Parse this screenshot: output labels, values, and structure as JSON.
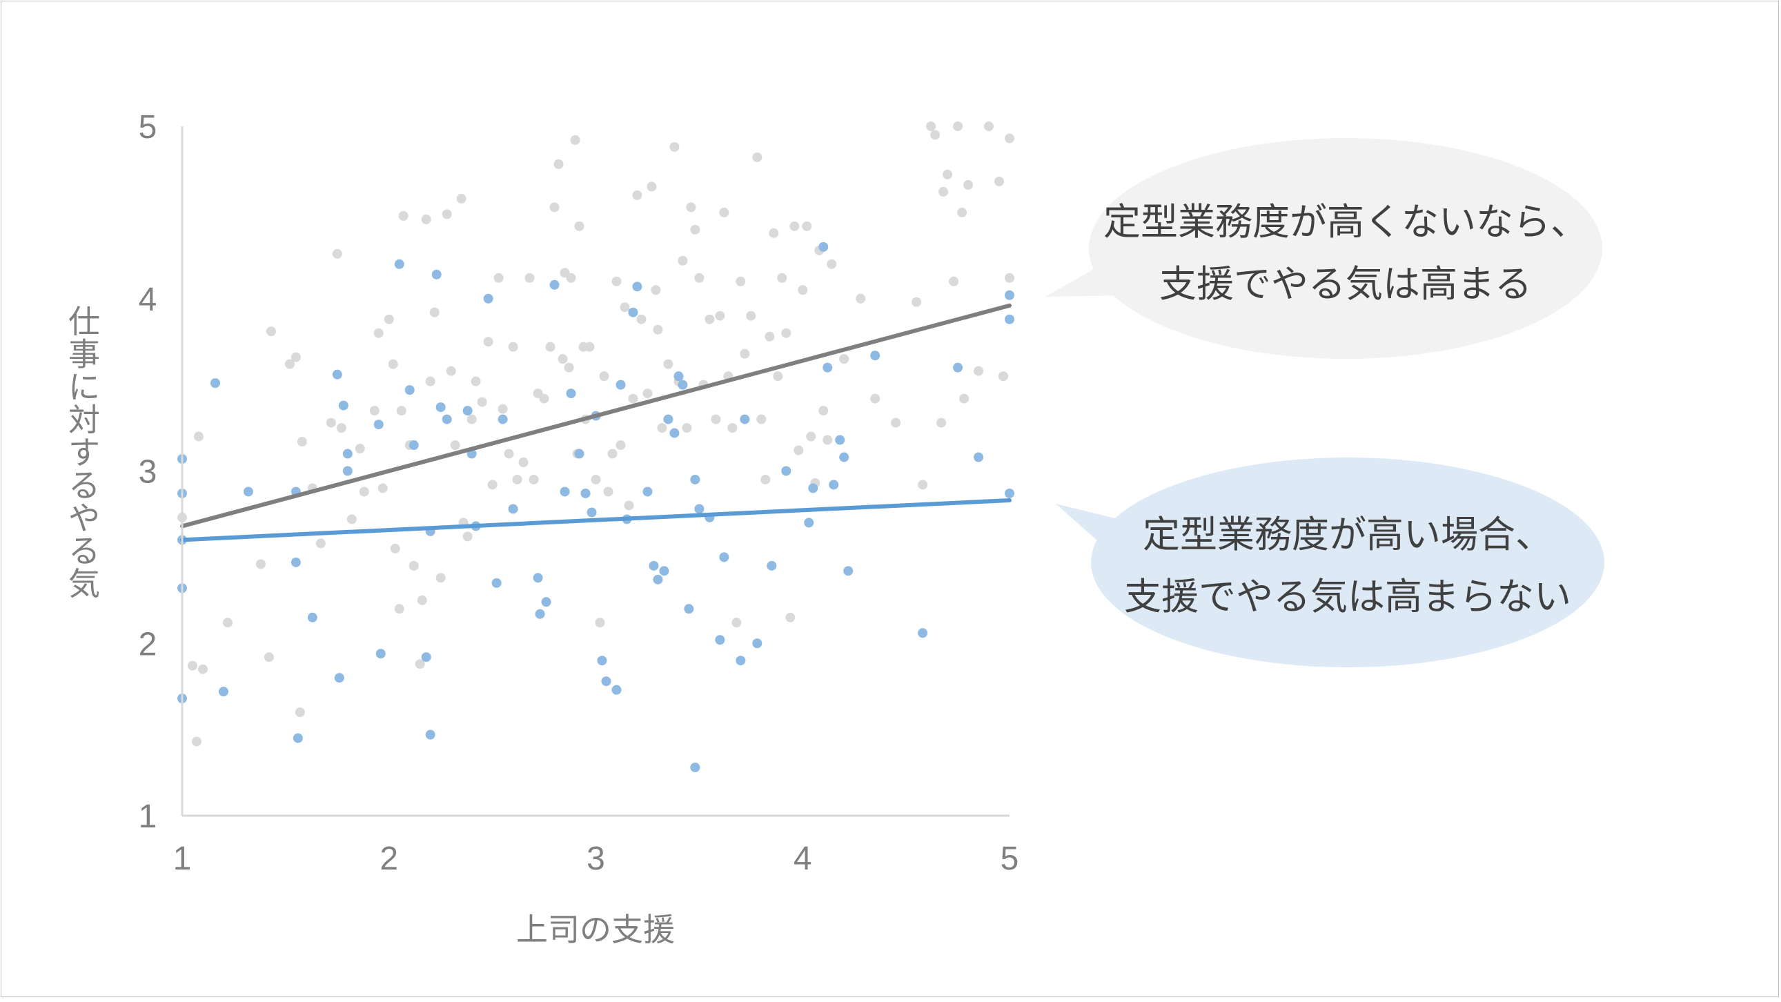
{
  "chart_data": {
    "type": "scatter",
    "xlabel": "上司の支援",
    "ylabel": "仕事に対するやる気",
    "xlim": [
      1,
      5
    ],
    "ylim": [
      1,
      5
    ],
    "x_ticks": [
      "1",
      "2",
      "3",
      "4",
      "5"
    ],
    "y_ticks": [
      "1",
      "2",
      "3",
      "4",
      "5"
    ],
    "grid": false,
    "colors": {
      "low_routine": "#7f7f7f",
      "low_routine_points": "#d9d9d9",
      "high_routine": "#5b9bd5",
      "high_routine_points": "#8db9e2",
      "axis": "#d9d9d9"
    },
    "series": [
      {
        "key": "low_routine",
        "trend": {
          "x": [
            1,
            5
          ],
          "y": [
            2.68,
            3.96
          ]
        },
        "points": [
          [
            1.0,
            2.73
          ],
          [
            1.05,
            1.87
          ],
          [
            1.07,
            1.43
          ],
          [
            1.08,
            3.2
          ],
          [
            1.1,
            1.85
          ],
          [
            1.22,
            2.12
          ],
          [
            1.38,
            2.46
          ],
          [
            1.42,
            1.92
          ],
          [
            1.43,
            3.81
          ],
          [
            1.52,
            3.62
          ],
          [
            1.55,
            3.66
          ],
          [
            1.57,
            1.6
          ],
          [
            1.58,
            3.17
          ],
          [
            1.63,
            2.9
          ],
          [
            1.67,
            2.58
          ],
          [
            1.72,
            3.28
          ],
          [
            1.75,
            4.26
          ],
          [
            1.77,
            3.25
          ],
          [
            1.82,
            2.72
          ],
          [
            1.86,
            3.13
          ],
          [
            1.88,
            2.88
          ],
          [
            1.93,
            3.35
          ],
          [
            1.95,
            3.8
          ],
          [
            1.97,
            2.9
          ],
          [
            2.0,
            3.88
          ],
          [
            2.02,
            3.62
          ],
          [
            2.03,
            2.55
          ],
          [
            2.05,
            2.2
          ],
          [
            2.06,
            3.35
          ],
          [
            2.07,
            4.48
          ],
          [
            2.1,
            3.15
          ],
          [
            2.12,
            2.45
          ],
          [
            2.15,
            1.88
          ],
          [
            2.16,
            2.25
          ],
          [
            2.18,
            4.46
          ],
          [
            2.2,
            3.52
          ],
          [
            2.22,
            3.92
          ],
          [
            2.25,
            2.38
          ],
          [
            2.28,
            4.49
          ],
          [
            2.3,
            3.58
          ],
          [
            2.32,
            3.15
          ],
          [
            2.35,
            4.58
          ],
          [
            2.36,
            2.7
          ],
          [
            2.38,
            2.62
          ],
          [
            2.4,
            3.3
          ],
          [
            2.42,
            3.52
          ],
          [
            2.45,
            3.4
          ],
          [
            2.48,
            3.75
          ],
          [
            2.5,
            2.92
          ],
          [
            2.53,
            4.12
          ],
          [
            2.55,
            3.36
          ],
          [
            2.58,
            3.1
          ],
          [
            2.6,
            3.72
          ],
          [
            2.62,
            2.95
          ],
          [
            2.65,
            3.05
          ],
          [
            2.68,
            4.12
          ],
          [
            2.7,
            2.95
          ],
          [
            2.72,
            3.45
          ],
          [
            2.75,
            3.42
          ],
          [
            2.78,
            3.72
          ],
          [
            2.8,
            4.53
          ],
          [
            2.82,
            4.78
          ],
          [
            2.84,
            3.65
          ],
          [
            2.85,
            4.15
          ],
          [
            2.87,
            3.6
          ],
          [
            2.88,
            4.12
          ],
          [
            2.9,
            4.92
          ],
          [
            2.91,
            3.1
          ],
          [
            2.92,
            4.42
          ],
          [
            2.94,
            3.72
          ],
          [
            2.95,
            3.3
          ],
          [
            2.97,
            3.72
          ],
          [
            3.0,
            2.95
          ],
          [
            3.02,
            2.12
          ],
          [
            3.04,
            3.55
          ],
          [
            3.06,
            2.88
          ],
          [
            3.08,
            3.1
          ],
          [
            3.1,
            4.1
          ],
          [
            3.12,
            3.15
          ],
          [
            3.14,
            3.95
          ],
          [
            3.16,
            2.8
          ],
          [
            3.18,
            3.42
          ],
          [
            3.2,
            4.6
          ],
          [
            3.22,
            3.88
          ],
          [
            3.25,
            3.45
          ],
          [
            3.27,
            4.65
          ],
          [
            3.29,
            4.05
          ],
          [
            3.3,
            3.82
          ],
          [
            3.32,
            3.25
          ],
          [
            3.35,
            3.62
          ],
          [
            3.38,
            4.88
          ],
          [
            3.4,
            3.52
          ],
          [
            3.42,
            4.22
          ],
          [
            3.44,
            3.25
          ],
          [
            3.46,
            4.53
          ],
          [
            3.48,
            4.4
          ],
          [
            3.5,
            4.12
          ],
          [
            3.52,
            3.5
          ],
          [
            3.55,
            3.88
          ],
          [
            3.58,
            3.3
          ],
          [
            3.6,
            3.9
          ],
          [
            3.62,
            4.5
          ],
          [
            3.64,
            3.55
          ],
          [
            3.66,
            3.25
          ],
          [
            3.68,
            2.12
          ],
          [
            3.7,
            4.1
          ],
          [
            3.72,
            3.68
          ],
          [
            3.75,
            3.9
          ],
          [
            3.78,
            4.82
          ],
          [
            3.8,
            3.3
          ],
          [
            3.82,
            2.95
          ],
          [
            3.84,
            3.78
          ],
          [
            3.86,
            4.38
          ],
          [
            3.88,
            3.55
          ],
          [
            3.9,
            4.12
          ],
          [
            3.92,
            3.8
          ],
          [
            3.94,
            2.15
          ],
          [
            3.96,
            4.42
          ],
          [
            3.98,
            3.12
          ],
          [
            4.0,
            4.05
          ],
          [
            4.02,
            4.42
          ],
          [
            4.04,
            3.2
          ],
          [
            4.06,
            2.93
          ],
          [
            4.08,
            4.28
          ],
          [
            4.1,
            3.35
          ],
          [
            4.12,
            3.18
          ],
          [
            4.14,
            4.2
          ],
          [
            4.2,
            3.65
          ],
          [
            4.28,
            4.0
          ],
          [
            4.35,
            3.42
          ],
          [
            4.45,
            3.28
          ],
          [
            4.55,
            3.98
          ],
          [
            4.58,
            2.92
          ],
          [
            4.62,
            5.0
          ],
          [
            4.64,
            4.95
          ],
          [
            4.67,
            3.28
          ],
          [
            4.68,
            4.62
          ],
          [
            4.7,
            4.72
          ],
          [
            4.73,
            4.1
          ],
          [
            4.75,
            5.0
          ],
          [
            4.77,
            4.5
          ],
          [
            4.78,
            3.42
          ],
          [
            4.8,
            4.66
          ],
          [
            4.85,
            3.58
          ],
          [
            4.9,
            5.0
          ],
          [
            4.95,
            4.68
          ],
          [
            4.97,
            3.55
          ],
          [
            5.0,
            4.93
          ],
          [
            5.0,
            4.12
          ]
        ]
      },
      {
        "key": "high_routine",
        "trend": {
          "x": [
            1,
            5
          ],
          "y": [
            2.6,
            2.83
          ]
        },
        "points": [
          [
            1.0,
            3.07
          ],
          [
            1.0,
            2.87
          ],
          [
            1.0,
            2.6
          ],
          [
            1.0,
            2.32
          ],
          [
            1.0,
            1.68
          ],
          [
            1.16,
            3.51
          ],
          [
            1.2,
            1.72
          ],
          [
            1.32,
            2.88
          ],
          [
            1.55,
            2.88
          ],
          [
            1.55,
            2.47
          ],
          [
            1.56,
            1.45
          ],
          [
            1.63,
            2.15
          ],
          [
            1.75,
            3.56
          ],
          [
            1.76,
            1.8
          ],
          [
            1.78,
            3.38
          ],
          [
            1.8,
            3.1
          ],
          [
            1.8,
            3.0
          ],
          [
            1.95,
            3.27
          ],
          [
            1.96,
            1.94
          ],
          [
            2.05,
            4.2
          ],
          [
            2.1,
            3.47
          ],
          [
            2.12,
            3.15
          ],
          [
            2.18,
            1.92
          ],
          [
            2.2,
            1.47
          ],
          [
            2.2,
            2.65
          ],
          [
            2.23,
            4.14
          ],
          [
            2.25,
            3.37
          ],
          [
            2.28,
            3.3
          ],
          [
            2.38,
            3.35
          ],
          [
            2.4,
            3.1
          ],
          [
            2.42,
            2.68
          ],
          [
            2.48,
            4.0
          ],
          [
            2.52,
            2.35
          ],
          [
            2.55,
            3.3
          ],
          [
            2.6,
            2.78
          ],
          [
            2.72,
            2.38
          ],
          [
            2.73,
            2.17
          ],
          [
            2.76,
            2.24
          ],
          [
            2.8,
            4.08
          ],
          [
            2.85,
            2.88
          ],
          [
            2.88,
            3.45
          ],
          [
            2.92,
            3.1
          ],
          [
            2.95,
            2.87
          ],
          [
            2.98,
            2.76
          ],
          [
            3.0,
            3.32
          ],
          [
            3.03,
            1.9
          ],
          [
            3.05,
            1.78
          ],
          [
            3.1,
            1.73
          ],
          [
            3.12,
            3.5
          ],
          [
            3.15,
            2.72
          ],
          [
            3.18,
            3.92
          ],
          [
            3.2,
            4.07
          ],
          [
            3.25,
            2.88
          ],
          [
            3.28,
            2.45
          ],
          [
            3.3,
            2.37
          ],
          [
            3.33,
            2.42
          ],
          [
            3.35,
            3.3
          ],
          [
            3.38,
            3.22
          ],
          [
            3.4,
            3.55
          ],
          [
            3.42,
            3.5
          ],
          [
            3.45,
            2.2
          ],
          [
            3.48,
            2.95
          ],
          [
            3.48,
            1.28
          ],
          [
            3.5,
            2.78
          ],
          [
            3.55,
            2.73
          ],
          [
            3.6,
            2.02
          ],
          [
            3.62,
            2.5
          ],
          [
            3.7,
            1.9
          ],
          [
            3.72,
            3.3
          ],
          [
            3.78,
            2.0
          ],
          [
            3.85,
            2.45
          ],
          [
            3.92,
            3.0
          ],
          [
            4.03,
            2.7
          ],
          [
            4.05,
            2.9
          ],
          [
            4.1,
            4.3
          ],
          [
            4.12,
            3.6
          ],
          [
            4.15,
            2.92
          ],
          [
            4.18,
            3.18
          ],
          [
            4.2,
            3.08
          ],
          [
            4.22,
            2.42
          ],
          [
            4.35,
            3.67
          ],
          [
            4.58,
            2.06
          ],
          [
            4.75,
            3.6
          ],
          [
            4.85,
            3.08
          ],
          [
            5.0,
            4.02
          ],
          [
            5.0,
            3.88
          ],
          [
            5.0,
            2.87
          ]
        ]
      }
    ],
    "annotations": [
      {
        "key": "low_routine",
        "lines": [
          "定型業務度が高くないなら、",
          "支援でやる気は高まる"
        ],
        "bg": "#f2f2f2"
      },
      {
        "key": "high_routine",
        "lines": [
          "定型業務度が高い場合、",
          "支援でやる気は高まらない"
        ],
        "bg": "#dde9f5"
      }
    ]
  }
}
